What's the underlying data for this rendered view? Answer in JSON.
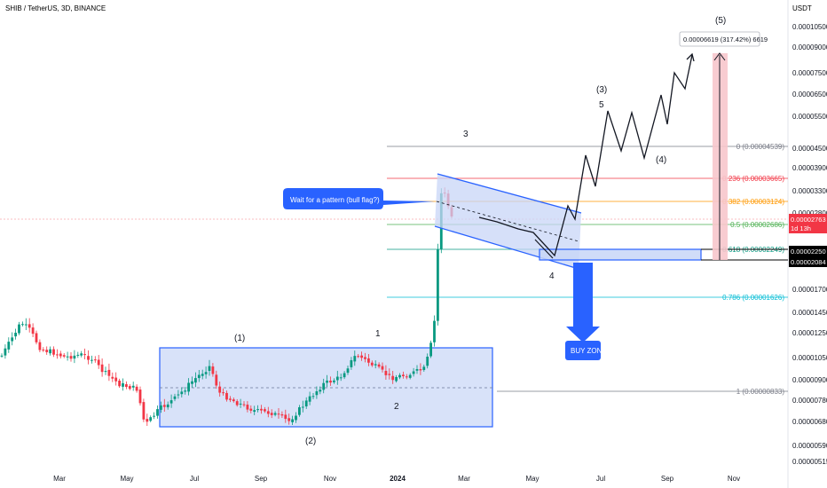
{
  "header": {
    "symbol_line": "SHIB / TetherUS, 3D, BINANCE",
    "currency": "USDT"
  },
  "chart_data": {
    "type": "candlestick",
    "title": "SHIB / TetherUS, 3D, BINANCE",
    "y_scale": "log",
    "ylim": [
      5e-06,
      1.15e-05
    ],
    "y_ticks": [
      "0.00010500",
      "0.00009000",
      "0.00007500",
      "0.00006500",
      "0.00005500",
      "0.00004500",
      "0.00003900",
      "0.00003300",
      "0.00002800",
      "0.00001700",
      "0.00001450",
      "0.00001250",
      "0.00001050",
      "0.00000900",
      "0.00000780",
      "0.00000680",
      "0.00000590",
      "0.00000515"
    ],
    "x_ticks": [
      "Mar",
      "May",
      "Jul",
      "Sep",
      "Nov",
      "2024",
      "Mar",
      "May",
      "Jul",
      "Sep",
      "Nov"
    ],
    "x_range": [
      "2023-02-01",
      "2024-11-30"
    ],
    "price_series": [
      {
        "x": "2023-02-01",
        "y": 1.05e-05
      },
      {
        "x": "2023-02-10",
        "y": 1.18e-05
      },
      {
        "x": "2023-02-20",
        "y": 1.35e-05
      },
      {
        "x": "2023-02-28",
        "y": 1.28e-05
      },
      {
        "x": "2023-03-10",
        "y": 1.12e-05
      },
      {
        "x": "2023-03-20",
        "y": 1.1e-05
      },
      {
        "x": "2023-04-01",
        "y": 1.06e-05
      },
      {
        "x": "2023-04-15",
        "y": 1.08e-05
      },
      {
        "x": "2023-04-25",
        "y": 1.05e-05
      },
      {
        "x": "2023-05-05",
        "y": 9.6e-06
      },
      {
        "x": "2023-05-20",
        "y": 8.8e-06
      },
      {
        "x": "2023-06-05",
        "y": 8.5e-06
      },
      {
        "x": "2023-06-12",
        "y": 6.6e-06
      },
      {
        "x": "2023-06-25",
        "y": 7.4e-06
      },
      {
        "x": "2023-07-10",
        "y": 8e-06
      },
      {
        "x": "2023-07-25",
        "y": 9e-06
      },
      {
        "x": "2023-08-10",
        "y": 1e-05
      },
      {
        "x": "2023-08-18",
        "y": 8.3e-06
      },
      {
        "x": "2023-09-01",
        "y": 7.8e-06
      },
      {
        "x": "2023-09-20",
        "y": 7.3e-06
      },
      {
        "x": "2023-10-05",
        "y": 7.2e-06
      },
      {
        "x": "2023-10-20",
        "y": 6.8e-06
      },
      {
        "x": "2023-11-05",
        "y": 7.8e-06
      },
      {
        "x": "2023-11-20",
        "y": 8.8e-06
      },
      {
        "x": "2023-12-05",
        "y": 9.2e-06
      },
      {
        "x": "2023-12-20",
        "y": 1.08e-05
      },
      {
        "x": "2024-01-05",
        "y": 1e-05
      },
      {
        "x": "2024-01-20",
        "y": 9.2e-06
      },
      {
        "x": "2024-02-05",
        "y": 9.4e-06
      },
      {
        "x": "2024-02-20",
        "y": 9.8e-06
      },
      {
        "x": "2024-02-28",
        "y": 1.25e-05
      },
      {
        "x": "2024-03-02",
        "y": 2e-05
      },
      {
        "x": "2024-03-05",
        "y": 3.3e-05
      },
      {
        "x": "2024-03-08",
        "y": 3.4e-05
      },
      {
        "x": "2024-03-12",
        "y": 3e-05
      },
      {
        "x": "2024-03-16",
        "y": 2.763e-05
      }
    ],
    "fib_levels": [
      {
        "ratio": "0",
        "value": "0.00004539",
        "color": "#787b86"
      },
      {
        "ratio": "0.236",
        "value": "0.00003665",
        "color": "#f23645"
      },
      {
        "ratio": "0.382",
        "value": "0.00003124",
        "color": "#ff9800"
      },
      {
        "ratio": "0.5",
        "value": "0.00002686",
        "color": "#4caf50"
      },
      {
        "ratio": "0.618",
        "value": "0.00002249",
        "color": "#089981"
      },
      {
        "ratio": "0.786",
        "value": "0.00001626",
        "color": "#00bcd4"
      },
      {
        "ratio": "1",
        "value": "0.00000833",
        "color": "#787b86"
      }
    ],
    "price_tags": [
      {
        "label": "0.00002763",
        "sub": "1d 13h",
        "color": "#f23645"
      },
      {
        "label": "0.00002250",
        "color": "#000000"
      },
      {
        "label": "0.00002084",
        "color": "#000000"
      }
    ],
    "wave_labels": [
      "(1)",
      "(2)",
      "1",
      "2",
      "3",
      "4",
      "(3)",
      "5",
      "(4)",
      "(5)"
    ],
    "annotations": {
      "callout": "Wait for a pattern (bull flag?)",
      "buy_zone": "BUY ZONE",
      "measure": "0.00006619 (317.42%) 6619"
    }
  }
}
